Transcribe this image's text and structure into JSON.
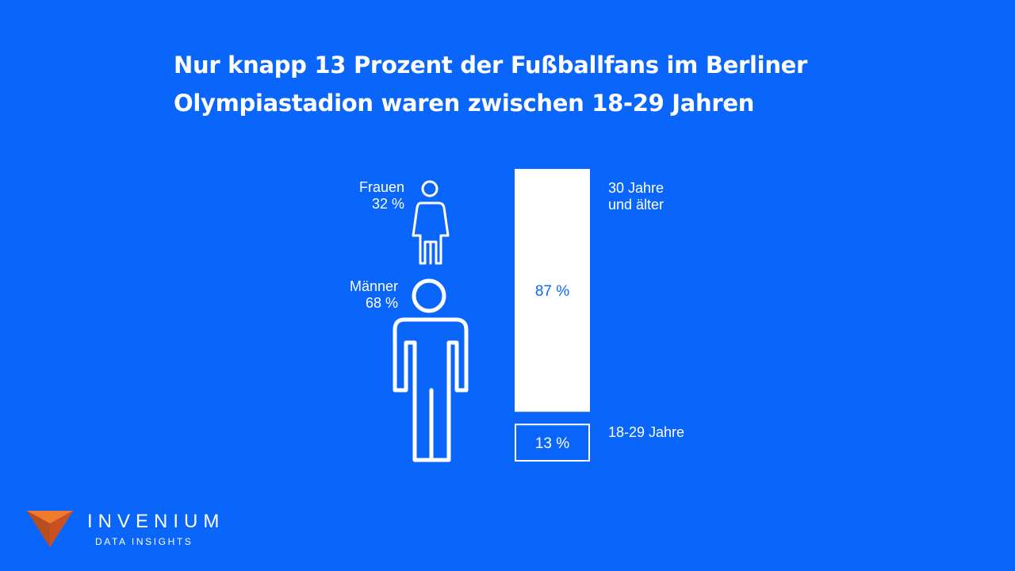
{
  "title_lines": [
    "Nur knapp 13 Prozent der Fußballfans im Berliner",
    "Olympiastadion waren zwischen 18-29 Jahren"
  ],
  "gender": {
    "women_label": "Frauen",
    "women_value": "32 %",
    "men_label": "Männer",
    "men_value": "68 %"
  },
  "age": {
    "older_label_line1": "30 Jahre",
    "older_label_line2": "und älter",
    "young_label": "18-29 Jahre"
  },
  "brand": {
    "name": "INVENIUM",
    "tagline": "DATA INSIGHTS"
  },
  "chart_data": [
    {
      "type": "icon-proportion",
      "categories": [
        "Frauen",
        "Männer"
      ],
      "values": [
        32,
        68
      ],
      "unit": "%"
    },
    {
      "type": "bar",
      "categories": [
        "30 Jahre und älter",
        "18-29 Jahre"
      ],
      "values": [
        87,
        13
      ],
      "value_labels": [
        "87 %",
        "13 %"
      ],
      "unit": "%"
    }
  ],
  "colors": {
    "background": "#0a66fa",
    "foreground": "#ffffff",
    "logo_orange": "#f07a2e",
    "logo_dark": "#8a2a16"
  }
}
